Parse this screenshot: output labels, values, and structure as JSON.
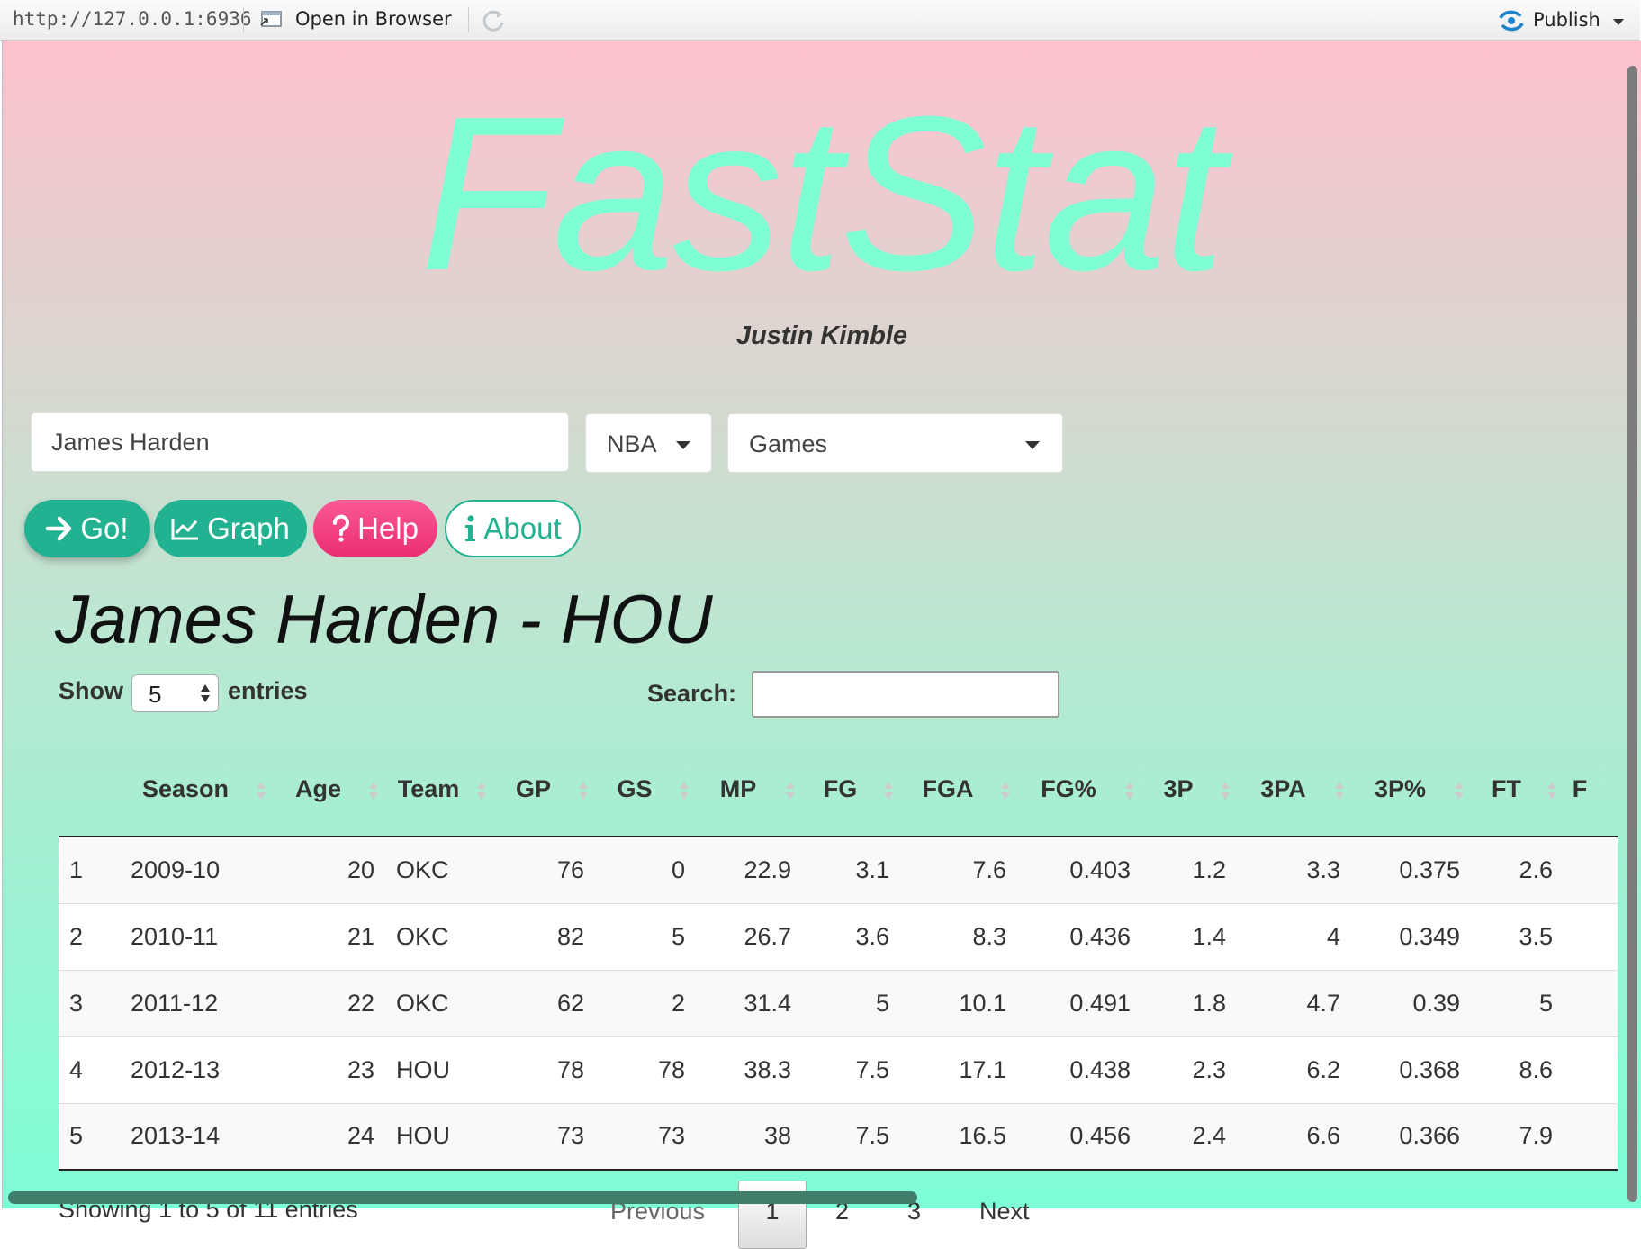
{
  "toolbar": {
    "url": "http://127.0.0.1:6936",
    "open_in_browser": "Open in Browser",
    "publish": "Publish",
    "icons": [
      "open-in-browser-icon",
      "refresh-icon",
      "publish-icon",
      "chevron-down-icon"
    ]
  },
  "app": {
    "title": "FastStat",
    "author": "Justin Kimble",
    "player_input_value": "James Harden",
    "league_select": "NBA",
    "stat_type_select": "Games",
    "buttons": {
      "go": "Go!",
      "graph": "Graph",
      "help": "Help",
      "about": "About"
    },
    "player_heading": "James Harden - HOU",
    "colors": {
      "title": "#7ffed4",
      "primary": "#23b291",
      "help": "#f0387d",
      "bg_top": "#fec2ce",
      "bg_bottom": "#7dfed6"
    }
  },
  "table": {
    "show_label": "Show",
    "entries_label": "entries",
    "length_value": "5",
    "search_label": "Search:",
    "search_value": "",
    "columns": [
      "",
      "Season",
      "Age",
      "Team",
      "GP",
      "GS",
      "MP",
      "FG",
      "FGA",
      "FG%",
      "3P",
      "3PA",
      "3P%",
      "FT",
      "F"
    ],
    "rows": [
      [
        "1",
        "2009-10",
        "20",
        "OKC",
        "76",
        "0",
        "22.9",
        "3.1",
        "7.6",
        "0.403",
        "1.2",
        "3.3",
        "0.375",
        "2.6"
      ],
      [
        "2",
        "2010-11",
        "21",
        "OKC",
        "82",
        "5",
        "26.7",
        "3.6",
        "8.3",
        "0.436",
        "1.4",
        "4",
        "0.349",
        "3.5"
      ],
      [
        "3",
        "2011-12",
        "22",
        "OKC",
        "62",
        "2",
        "31.4",
        "5",
        "10.1",
        "0.491",
        "1.8",
        "4.7",
        "0.39",
        "5"
      ],
      [
        "4",
        "2012-13",
        "23",
        "HOU",
        "78",
        "78",
        "38.3",
        "7.5",
        "17.1",
        "0.438",
        "2.3",
        "6.2",
        "0.368",
        "8.6"
      ],
      [
        "5",
        "2013-14",
        "24",
        "HOU",
        "73",
        "73",
        "38",
        "7.5",
        "16.5",
        "0.456",
        "2.4",
        "6.6",
        "0.366",
        "7.9"
      ]
    ],
    "info": "Showing 1 to 5 of 11 entries",
    "pagination": {
      "previous": "Previous",
      "pages": [
        "1",
        "2",
        "3"
      ],
      "next": "Next",
      "current": "1"
    }
  }
}
